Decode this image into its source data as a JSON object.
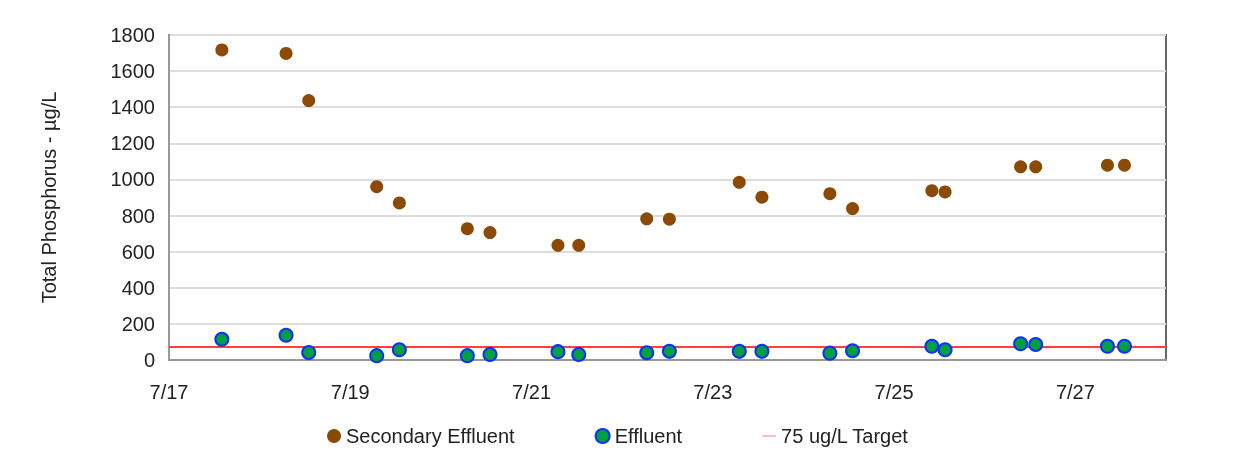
{
  "chart_data": {
    "type": "scatter",
    "ylabel": "Total Phosphorus - µg/L",
    "x": [
      "--07-17T14:00",
      "--07-18T07:00",
      "--07-18T13:00",
      "--07-19T07:00",
      "--07-19T13:00",
      "--07-20T07:00",
      "--07-20T13:00",
      "--07-21T07:00",
      "--07-21T12:30",
      "--07-22T06:30",
      "--07-22T12:30",
      "--07-23T07:00",
      "--07-23T13:00",
      "--07-24T07:00",
      "--07-24T13:00",
      "--07-25T10:00",
      "--07-25T13:30",
      "--07-26T09:30",
      "--07-26T13:30",
      "--07-27T08:30",
      "--07-27T13:00"
    ],
    "series": [
      {
        "name": "Secondary Effluent",
        "color": "#8b4a06",
        "values": [
          1717,
          1698,
          1437,
          960,
          870,
          727,
          706,
          635,
          635,
          782,
          780,
          984,
          902,
          921,
          839,
          938,
          931,
          1070,
          1070,
          1079,
          1079
        ]
      },
      {
        "name": "Effluent",
        "color": "#00a040",
        "values": [
          115,
          137,
          41,
          24,
          57,
          24,
          31,
          46,
          31,
          40,
          48,
          48,
          48,
          38,
          51,
          76,
          57,
          90,
          86,
          76,
          76
        ]
      }
    ],
    "ref_lines": [
      {
        "axis": "y",
        "value": 75,
        "label": "75 ug/L Target",
        "color": "#ff4040"
      }
    ],
    "xlim": [
      "--07-17",
      "--07-28"
    ],
    "xticks": [
      {
        "value": "--07-17",
        "label": "7/17"
      },
      {
        "value": "--07-19",
        "label": "7/19"
      },
      {
        "value": "--07-21",
        "label": "7/21"
      },
      {
        "value": "--07-23",
        "label": "7/23"
      },
      {
        "value": "--07-25",
        "label": "7/25"
      },
      {
        "value": "--07-27",
        "label": "7/27"
      }
    ],
    "ylim": [
      0,
      1800
    ],
    "yticks": [
      0,
      200,
      400,
      600,
      800,
      1000,
      1200,
      1400,
      1600,
      1800
    ],
    "grid": "y",
    "legend": "bottom",
    "marker": "circle"
  }
}
